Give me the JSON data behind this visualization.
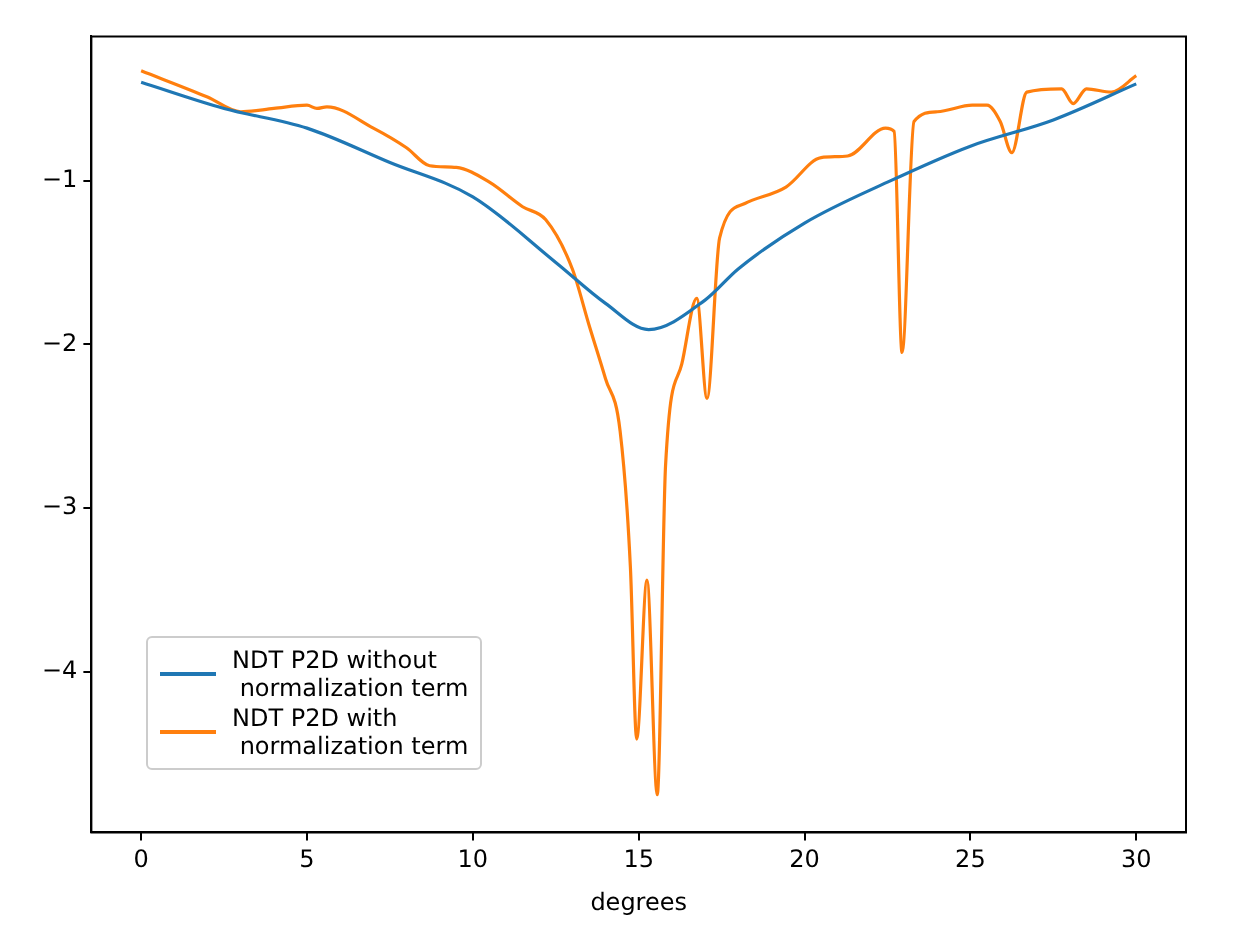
{
  "chart_data": {
    "type": "line",
    "xlabel": "degrees",
    "xlim": [
      -1.5,
      31.5
    ],
    "ylim": [
      -4.98,
      -0.12
    ],
    "xticks": [
      0,
      5,
      10,
      15,
      20,
      25,
      30
    ],
    "yticks": [
      {
        "value": -1,
        "label": "−1"
      },
      {
        "value": -2,
        "label": "−2"
      },
      {
        "value": -3,
        "label": "−3"
      },
      {
        "value": -4,
        "label": "−4"
      }
    ],
    "legend": "bottom left",
    "grid": false,
    "marker": "none",
    "line_style": "solid",
    "series": [
      {
        "name": "NDT P2D without\n normalization term",
        "color": "#1f77b4",
        "x": [
          0,
          2.5,
          5,
          7.5,
          10,
          12.5,
          14,
          15.3,
          17,
          18,
          20,
          22.5,
          25,
          27.5,
          30
        ],
        "values": [
          -0.4,
          -0.56,
          -0.68,
          -0.89,
          -1.1,
          -1.5,
          -1.75,
          -1.91,
          -1.73,
          -1.54,
          -1.26,
          -1.01,
          -0.79,
          -0.63,
          -0.41
        ]
      },
      {
        "name": "NDT P2D with\n normalization term",
        "color": "#ff7f0e",
        "x": [
          0,
          2,
          3,
          4,
          5,
          5.3,
          5.6,
          7,
          8,
          8.7,
          9.5,
          10.5,
          11.5,
          12.2,
          13,
          13.5,
          14,
          14.44,
          14.75,
          14.94,
          15.25,
          15.56,
          15.81,
          16.3,
          16.75,
          17.06,
          17.44,
          18.2,
          19.44,
          20.5,
          21.3,
          22.44,
          22.7,
          22.94,
          23.3,
          24,
          25.06,
          25.5,
          25.9,
          26.25,
          26.7,
          27.75,
          28.1,
          28.5,
          29.25,
          30
        ],
        "values": [
          -0.33,
          -0.49,
          -0.58,
          -0.56,
          -0.54,
          -0.56,
          -0.55,
          -0.68,
          -0.8,
          -0.91,
          -0.92,
          -1.01,
          -1.16,
          -1.24,
          -1.54,
          -1.88,
          -2.21,
          -2.53,
          -3.36,
          -4.41,
          -3.44,
          -4.75,
          -2.74,
          -2.12,
          -1.72,
          -2.33,
          -1.35,
          -1.14,
          -1.04,
          -0.86,
          -0.85,
          -0.68,
          -0.7,
          -2.05,
          -0.64,
          -0.58,
          -0.54,
          -0.54,
          -0.64,
          -0.83,
          -0.46,
          -0.44,
          -0.53,
          -0.44,
          -0.46,
          -0.36
        ]
      }
    ]
  }
}
